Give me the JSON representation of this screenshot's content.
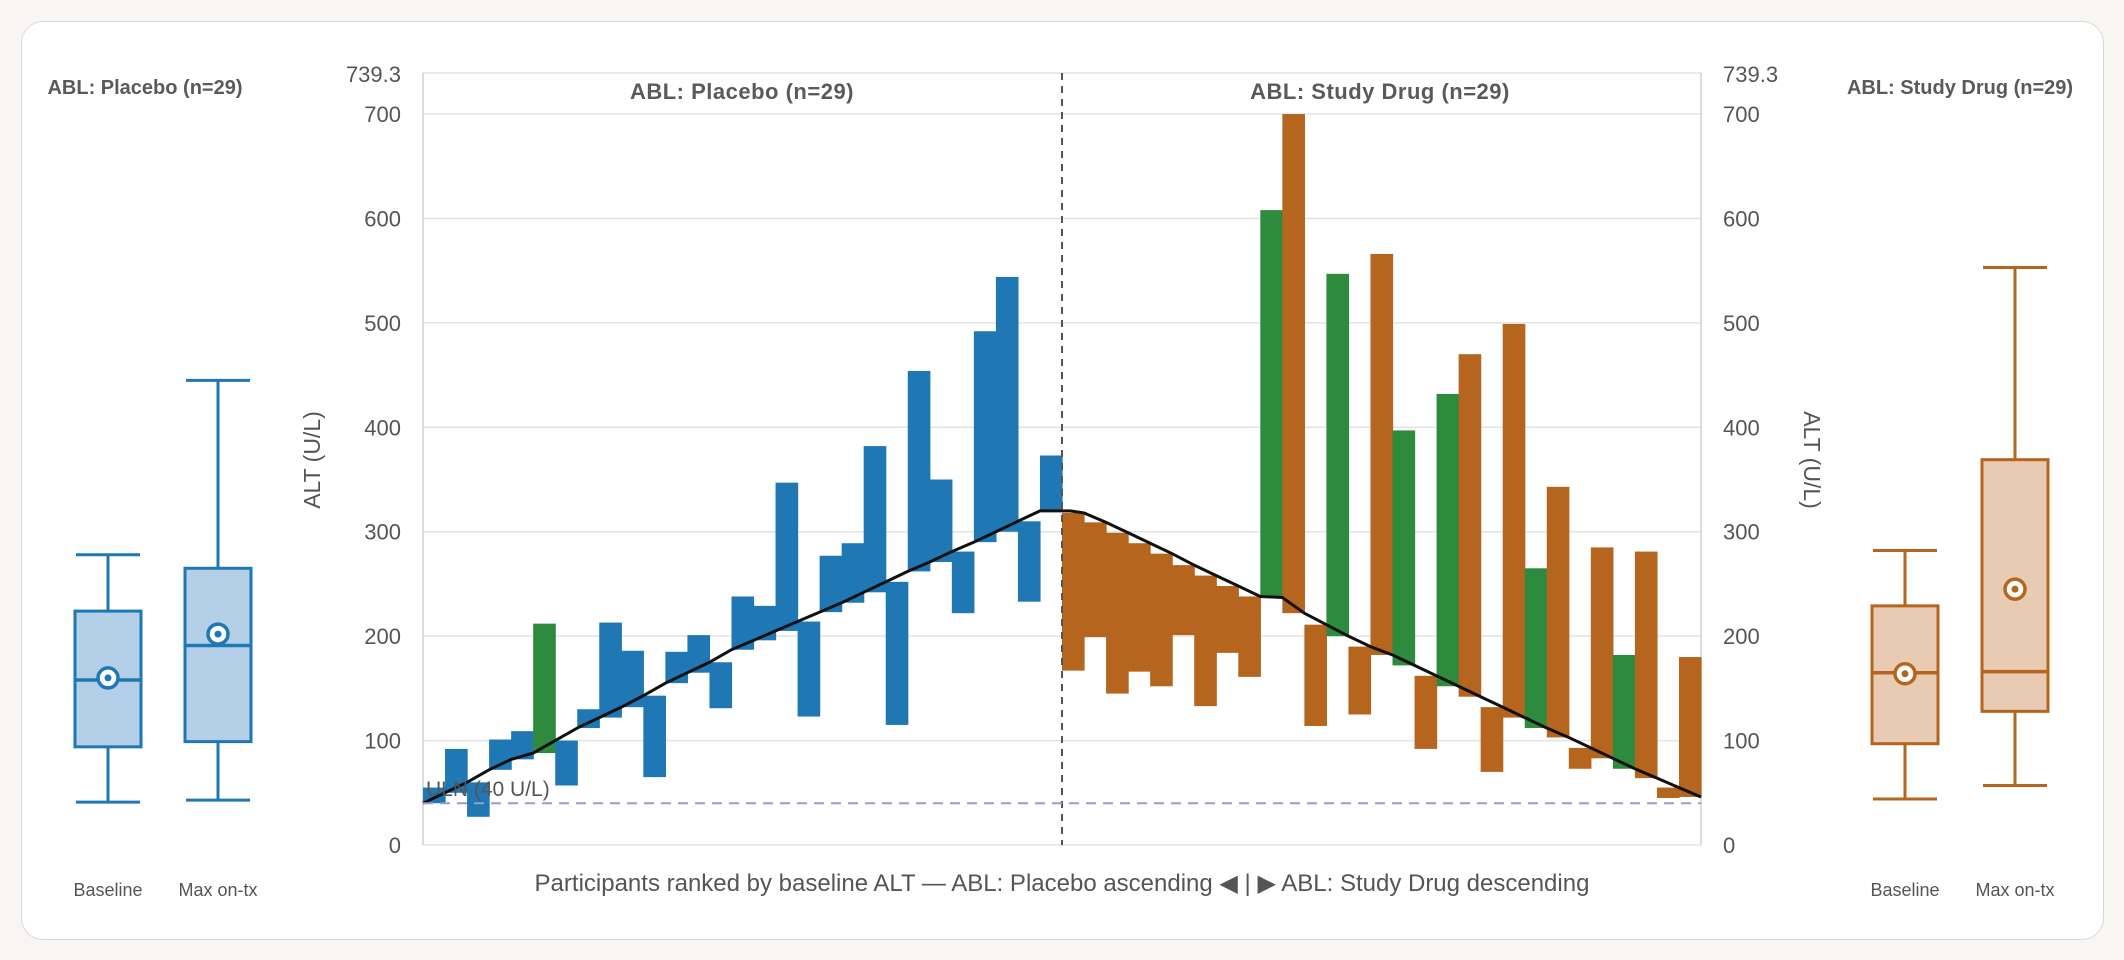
{
  "chart_data": {
    "type": "bar",
    "axis_label_left": "ALT (U/L)",
    "axis_label_right": "ALT (U/L)",
    "ylim": [
      0,
      739.3
    ],
    "ymax_label": "739.3",
    "yticks": [
      0,
      100,
      200,
      300,
      400,
      500,
      600,
      700
    ],
    "xlabel": "Participants ranked by baseline ALT — ABL: Placebo ascending ◀ | ▶ ABL: Study Drug descending",
    "reference_line": {
      "label": "ULN (40 U/L)",
      "value": 40
    },
    "colors": {
      "placebo": "#1f77b4",
      "study": "#b5651d",
      "shift_up": "#2e8b3e",
      "baseline_line": "#111111",
      "divider": "#555555",
      "ref": "#9b9bc8"
    },
    "panels": [
      {
        "title": "ABL: Placebo (n=29)",
        "order": "ascending",
        "participants": [
          {
            "baseline": 40,
            "max": 55,
            "color": "placebo"
          },
          {
            "baseline": 50,
            "max": 92,
            "color": "placebo"
          },
          {
            "baseline": 60,
            "max": 27,
            "color": "placebo"
          },
          {
            "baseline": 72,
            "max": 101,
            "color": "placebo"
          },
          {
            "baseline": 82,
            "max": 109,
            "color": "placebo"
          },
          {
            "baseline": 88,
            "max": 212,
            "color": "shift_up"
          },
          {
            "baseline": 100,
            "max": 57,
            "color": "placebo"
          },
          {
            "baseline": 112,
            "max": 130,
            "color": "placebo"
          },
          {
            "baseline": 122,
            "max": 213,
            "color": "placebo"
          },
          {
            "baseline": 132,
            "max": 186,
            "color": "placebo"
          },
          {
            "baseline": 143,
            "max": 65,
            "color": "placebo"
          },
          {
            "baseline": 155,
            "max": 185,
            "color": "placebo"
          },
          {
            "baseline": 165,
            "max": 201,
            "color": "placebo"
          },
          {
            "baseline": 175,
            "max": 131,
            "color": "placebo"
          },
          {
            "baseline": 187,
            "max": 238,
            "color": "placebo"
          },
          {
            "baseline": 196,
            "max": 229,
            "color": "placebo"
          },
          {
            "baseline": 205,
            "max": 347,
            "color": "placebo"
          },
          {
            "baseline": 214,
            "max": 123,
            "color": "placebo"
          },
          {
            "baseline": 223,
            "max": 277,
            "color": "placebo"
          },
          {
            "baseline": 232,
            "max": 289,
            "color": "placebo"
          },
          {
            "baseline": 242,
            "max": 382,
            "color": "placebo"
          },
          {
            "baseline": 252,
            "max": 115,
            "color": "placebo"
          },
          {
            "baseline": 262,
            "max": 454,
            "color": "placebo"
          },
          {
            "baseline": 271,
            "max": 350,
            "color": "placebo"
          },
          {
            "baseline": 281,
            "max": 222,
            "color": "placebo"
          },
          {
            "baseline": 290,
            "max": 492,
            "color": "placebo"
          },
          {
            "baseline": 300,
            "max": 544,
            "color": "placebo"
          },
          {
            "baseline": 310,
            "max": 233,
            "color": "placebo"
          },
          {
            "baseline": 320,
            "max": 373,
            "color": "placebo"
          }
        ]
      },
      {
        "title": "ABL: Study Drug (n=29)",
        "order": "descending",
        "participants": [
          {
            "baseline": 318,
            "max": 167,
            "color": "study"
          },
          {
            "baseline": 309,
            "max": 199,
            "color": "study"
          },
          {
            "baseline": 299,
            "max": 145,
            "color": "study"
          },
          {
            "baseline": 289,
            "max": 166,
            "color": "study"
          },
          {
            "baseline": 279,
            "max": 152,
            "color": "study"
          },
          {
            "baseline": 268,
            "max": 201,
            "color": "study"
          },
          {
            "baseline": 258,
            "max": 133,
            "color": "study"
          },
          {
            "baseline": 248,
            "max": 184,
            "color": "study"
          },
          {
            "baseline": 238,
            "max": 161,
            "color": "study"
          },
          {
            "baseline": 237,
            "max": 608,
            "color": "shift_up"
          },
          {
            "baseline": 222,
            "max": 700,
            "color": "study"
          },
          {
            "baseline": 211,
            "max": 114,
            "color": "study"
          },
          {
            "baseline": 200,
            "max": 547,
            "color": "shift_up"
          },
          {
            "baseline": 190,
            "max": 125,
            "color": "study"
          },
          {
            "baseline": 182,
            "max": 566,
            "color": "study"
          },
          {
            "baseline": 172,
            "max": 397,
            "color": "shift_up"
          },
          {
            "baseline": 162,
            "max": 92,
            "color": "study"
          },
          {
            "baseline": 152,
            "max": 432,
            "color": "shift_up"
          },
          {
            "baseline": 142,
            "max": 470,
            "color": "study"
          },
          {
            "baseline": 132,
            "max": 70,
            "color": "study"
          },
          {
            "baseline": 122,
            "max": 499,
            "color": "study"
          },
          {
            "baseline": 112,
            "max": 265,
            "color": "shift_up"
          },
          {
            "baseline": 103,
            "max": 343,
            "color": "study"
          },
          {
            "baseline": 93,
            "max": 73,
            "color": "study"
          },
          {
            "baseline": 83,
            "max": 285,
            "color": "study"
          },
          {
            "baseline": 73,
            "max": 182,
            "color": "shift_up"
          },
          {
            "baseline": 64,
            "max": 281,
            "color": "study"
          },
          {
            "baseline": 55,
            "max": 45,
            "color": "study"
          },
          {
            "baseline": 46,
            "max": 180,
            "color": "study"
          }
        ]
      }
    ],
    "boxplots": [
      {
        "title": "ABL: Placebo (n=29)",
        "color": "placebo",
        "fill": "#b3d0e8",
        "boxes": [
          {
            "label": "Baseline",
            "whisker_low": 41,
            "q1": 94,
            "median": 158,
            "q3": 224,
            "whisker_high": 278,
            "mean": 160
          },
          {
            "label": "Max on-tx",
            "whisker_low": 43,
            "q1": 99,
            "median": 191,
            "q3": 265,
            "whisker_high": 445,
            "mean": 202
          }
        ]
      },
      {
        "title": "ABL: Study Drug (n=29)",
        "color": "study",
        "fill": "#e8cbb2",
        "boxes": [
          {
            "label": "Baseline",
            "whisker_low": 44,
            "q1": 97,
            "median": 165,
            "q3": 229,
            "whisker_high": 282,
            "mean": 164
          },
          {
            "label": "Max on-tx",
            "whisker_low": 57,
            "q1": 128,
            "median": 166,
            "q3": 369,
            "whisker_high": 553,
            "mean": 245
          }
        ]
      }
    ]
  }
}
